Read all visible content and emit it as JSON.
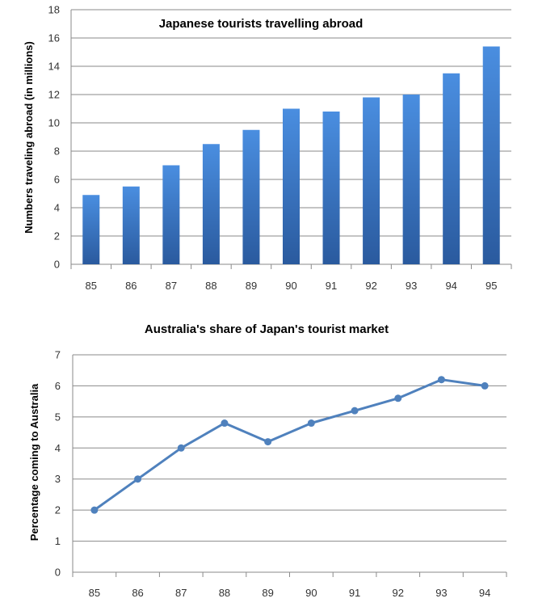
{
  "chart_data": [
    {
      "type": "bar",
      "title": "Japanese tourists travelling abroad",
      "xlabel": "",
      "ylabel": "Numbers traveling abroad (in millions)",
      "categories": [
        "85",
        "86",
        "87",
        "88",
        "89",
        "90",
        "91",
        "92",
        "93",
        "94",
        "95"
      ],
      "values": [
        4.9,
        5.5,
        7.0,
        8.5,
        9.5,
        11.0,
        10.8,
        11.8,
        12.0,
        13.5,
        15.4
      ],
      "ylim": [
        0,
        18
      ],
      "yticks": [
        "0",
        "2",
        "4",
        "6",
        "8",
        "10",
        "12",
        "14",
        "16",
        "18"
      ],
      "grid": true,
      "legend": "none",
      "color": "#3c78c8"
    },
    {
      "type": "line",
      "title": "Australia's share of Japan's tourist market",
      "xlabel": "",
      "ylabel": "Percentage coming to Australia",
      "categories": [
        "85",
        "86",
        "87",
        "88",
        "89",
        "90",
        "91",
        "92",
        "93",
        "94"
      ],
      "values": [
        2.0,
        3.0,
        4.0,
        4.8,
        4.2,
        4.8,
        5.2,
        5.6,
        6.2,
        6.0
      ],
      "ylim": [
        0,
        7
      ],
      "yticks": [
        "0",
        "1",
        "2",
        "3",
        "4",
        "5",
        "6",
        "7"
      ],
      "grid": true,
      "legend": "none",
      "color": "#4f81bd"
    }
  ]
}
